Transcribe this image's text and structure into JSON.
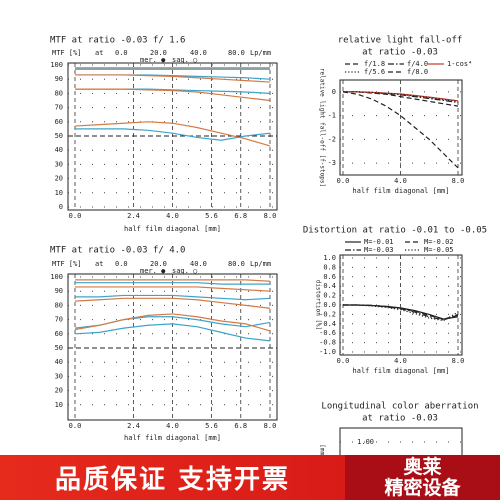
{
  "chart_data": [
    {
      "type": "line",
      "title": "MTF at ratio -0.03  f/ 1.6",
      "header": {
        "label": "MTF [%]",
        "at": "at",
        "frequencies": [
          "0.0",
          "20.0",
          "40.0",
          "80.0"
        ],
        "unit": "Lp/mm",
        "legend": [
          "mer. ●",
          "sag. ○"
        ]
      },
      "xlabel": "half film diagonal [mm]",
      "x": [
        0,
        1,
        2,
        3,
        4,
        5,
        6,
        7,
        8
      ],
      "xlim": [
        0,
        8
      ],
      "xticks": [
        {
          "value": 0,
          "label": "0.0"
        },
        {
          "value": 2.4,
          "label": "2.4"
        },
        {
          "value": 4,
          "label": "4.0"
        },
        {
          "value": 5.6,
          "label": "5.6"
        },
        {
          "value": 6.8,
          "label": "6.8"
        },
        {
          "value": 8,
          "label": "8.0"
        }
      ],
      "ylim": [
        0,
        100
      ],
      "yticks": [
        0,
        10,
        20,
        30,
        40,
        50,
        60,
        70,
        80,
        90,
        100
      ],
      "grid": true,
      "reference_line": 50,
      "series": [
        {
          "color": "#3ea3cc",
          "style": "solid",
          "values": [
            98,
            98,
            98,
            98,
            98,
            98,
            98,
            98,
            98
          ]
        },
        {
          "color": "#d47a45",
          "style": "solid",
          "values": [
            97,
            97,
            97,
            97,
            97,
            97,
            97,
            97,
            97
          ]
        },
        {
          "color": "#3ea3cc",
          "style": "solid",
          "values": [
            93,
            93,
            93,
            93,
            92.5,
            92,
            91.5,
            91,
            90
          ]
        },
        {
          "color": "#d47a45",
          "style": "solid",
          "values": [
            93,
            93,
            93,
            92.5,
            92,
            91,
            90,
            89,
            88
          ]
        },
        {
          "color": "#3ea3cc",
          "style": "solid",
          "values": [
            83,
            83,
            83,
            83,
            82.5,
            82,
            81.5,
            81,
            80
          ]
        },
        {
          "color": "#d47a45",
          "style": "solid",
          "values": [
            83,
            83,
            83,
            82.5,
            82,
            81,
            79,
            77,
            75
          ]
        },
        {
          "color": "#3ea3cc",
          "style": "solid",
          "values": [
            55,
            55,
            55,
            54,
            52,
            49,
            47,
            50,
            52
          ]
        },
        {
          "color": "#d47a45",
          "style": "solid",
          "values": [
            57,
            58,
            59,
            60,
            59,
            56,
            52,
            48,
            43
          ]
        }
      ]
    },
    {
      "type": "line",
      "title": "MTF at ratio -0.03  f/ 4.0",
      "header": {
        "label": "MTF [%]",
        "at": "at",
        "frequencies": [
          "0.0",
          "20.0",
          "40.0",
          "80.0"
        ],
        "unit": "Lp/mm",
        "legend": [
          "mer. ●",
          "sag. ○"
        ]
      },
      "xlabel": "half film diagonal [mm]",
      "x": [
        0,
        1,
        2,
        3,
        4,
        5,
        6,
        7,
        8
      ],
      "xlim": [
        0,
        8
      ],
      "xticks": [
        {
          "value": 0,
          "label": "0.0"
        },
        {
          "value": 2.4,
          "label": "2.4"
        },
        {
          "value": 4,
          "label": "4.0"
        },
        {
          "value": 5.6,
          "label": "5.6"
        },
        {
          "value": 6.8,
          "label": "6.8"
        },
        {
          "value": 8,
          "label": "8.0"
        }
      ],
      "ylim": [
        0,
        100
      ],
      "yticks": [
        10,
        20,
        30,
        40,
        50,
        60,
        70,
        80,
        90,
        100
      ],
      "grid": true,
      "reference_line": 50,
      "series": [
        {
          "color": "#d47a45",
          "style": "solid",
          "values": [
            98,
            98,
            98,
            98,
            98,
            98,
            98,
            98,
            97
          ]
        },
        {
          "color": "#3ea3cc",
          "style": "solid",
          "values": [
            96,
            96,
            96,
            96,
            96,
            96,
            95,
            95,
            95
          ]
        },
        {
          "color": "#d47a45",
          "style": "solid",
          "values": [
            93,
            93,
            93,
            93,
            93,
            93,
            92,
            91,
            90
          ]
        },
        {
          "color": "#3ea3cc",
          "style": "solid",
          "values": [
            86,
            86,
            87,
            87,
            87,
            86,
            85,
            84,
            85
          ]
        },
        {
          "color": "#d47a45",
          "style": "solid",
          "values": [
            83,
            84,
            85,
            85,
            85,
            84,
            82,
            80,
            78
          ]
        },
        {
          "color": "#3ea3cc",
          "style": "solid",
          "values": [
            64,
            66,
            70,
            72,
            72,
            70,
            67,
            65,
            68
          ]
        },
        {
          "color": "#d47a45",
          "style": "solid",
          "values": [
            63,
            66,
            70,
            73,
            74,
            72,
            69,
            67,
            62
          ]
        },
        {
          "color": "#3ea3cc",
          "style": "solid",
          "values": [
            60,
            61,
            64,
            66,
            67,
            65,
            61,
            57,
            55
          ]
        }
      ]
    },
    {
      "type": "line",
      "title": "relative light fall-off",
      "subtitle": "at ratio -0.03",
      "xlabel": "half film diagonal [mm]",
      "ylabel": "relative light fall-off [f-stops]",
      "x": [
        0,
        1,
        2,
        3,
        4,
        5,
        6,
        7,
        8
      ],
      "xlim": [
        0,
        8
      ],
      "xticks": [
        {
          "value": 0,
          "label": "0.0"
        },
        {
          "value": 4,
          "label": "4.0"
        },
        {
          "value": 8,
          "label": "8.0"
        }
      ],
      "ylim": [
        -3.5,
        0.5
      ],
      "yticks": [
        0,
        -1,
        -2,
        -3
      ],
      "grid": true,
      "legend_columns": 3,
      "series": [
        {
          "name": "f/1.8",
          "color": "#222222",
          "style": "dashed",
          "values": [
            0,
            0,
            -0.05,
            -0.1,
            -0.2,
            -0.3,
            -0.4,
            -0.5,
            -0.6
          ]
        },
        {
          "name": "f/4.0",
          "color": "#222222",
          "style": "dashdot",
          "values": [
            0,
            0,
            -0.03,
            -0.07,
            -0.12,
            -0.2,
            -0.28,
            -0.36,
            -0.45
          ]
        },
        {
          "name": "1-cos⁴",
          "color": "#c0392b",
          "style": "solid",
          "values": [
            0,
            0,
            -0.02,
            -0.05,
            -0.09,
            -0.15,
            -0.22,
            -0.3,
            -0.38
          ]
        },
        {
          "name": "f/5.6",
          "color": "#222222",
          "style": "dotted",
          "values": [
            0,
            0,
            -0.02,
            -0.06,
            -0.1,
            -0.17,
            -0.24,
            -0.32,
            -0.4
          ]
        },
        {
          "name": "f/8.0",
          "color": "#222222",
          "style": "dashed",
          "values": [
            0,
            -0.1,
            -0.3,
            -0.6,
            -1,
            -1.5,
            -2,
            -2.6,
            -3.2
          ]
        }
      ]
    },
    {
      "type": "line",
      "title": "Distortion at ratio -0.01 to -0.05",
      "xlabel": "half film diagonal [mm]",
      "ylabel": "distortion [%]",
      "x": [
        0,
        1,
        2,
        3,
        4,
        5,
        6,
        7,
        8
      ],
      "xlim": [
        0,
        8
      ],
      "xticks": [
        {
          "value": 0,
          "label": "0.0"
        },
        {
          "value": 4,
          "label": "4.0"
        },
        {
          "value": 8,
          "label": "8.0"
        }
      ],
      "ylim": [
        -1,
        1
      ],
      "yticks": [
        {
          "value": 1,
          "label": "1.0"
        },
        {
          "value": 0.8,
          "label": "0.8"
        },
        {
          "value": 0.6,
          "label": "0.6"
        },
        {
          "value": 0.4,
          "label": "0.4"
        },
        {
          "value": 0.2,
          "label": "0.2"
        },
        {
          "value": 0,
          "label": "0.0"
        },
        {
          "value": -0.2,
          "label": "-0.2"
        },
        {
          "value": -0.4,
          "label": "-0.4"
        },
        {
          "value": -0.6,
          "label": "-0.6"
        },
        {
          "value": -0.8,
          "label": "-0.8"
        },
        {
          "value": -1,
          "label": "-1.0"
        }
      ],
      "grid": true,
      "legend_columns": 2,
      "series": [
        {
          "name": "M=-0.01",
          "color": "#222222",
          "style": "solid",
          "values": [
            0,
            0,
            -0.01,
            -0.03,
            -0.06,
            -0.12,
            -0.2,
            -0.3,
            -0.25
          ]
        },
        {
          "name": "M=-0.02",
          "color": "#222222",
          "style": "dashed",
          "values": [
            0,
            0,
            -0.01,
            -0.03,
            -0.07,
            -0.13,
            -0.22,
            -0.3,
            -0.22
          ]
        },
        {
          "name": "M=-0.03",
          "color": "#222222",
          "style": "dashdot",
          "values": [
            0,
            0,
            -0.01,
            -0.04,
            -0.08,
            -0.15,
            -0.25,
            -0.32,
            -0.2
          ]
        },
        {
          "name": "M=-0.05",
          "color": "#222222",
          "style": "dotted",
          "values": [
            0,
            0,
            -0.02,
            -0.05,
            -0.1,
            -0.18,
            -0.28,
            -0.33,
            -0.15
          ]
        }
      ]
    },
    {
      "type": "line",
      "title": "Longitudinal color aberration",
      "subtitle": "at ratio -0.03",
      "ylabel": "[mm]",
      "ylim": [
        0.9,
        1.05
      ],
      "yticks": [
        {
          "value": 1,
          "label": "1.00"
        }
      ],
      "grid": true,
      "series": []
    }
  ],
  "banner": {
    "left": "品质保证  支持开票",
    "right": [
      "奥莱",
      "精密设备"
    ]
  }
}
